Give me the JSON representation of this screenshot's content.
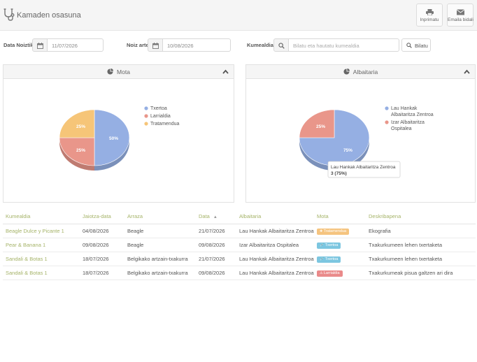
{
  "header": {
    "title": "Kamaden osasuna",
    "print_label": "Inprimatu",
    "email_label": "Emaila bidali"
  },
  "filters": {
    "date_from_label": "Data Noiztik",
    "date_from_value": "11/07/2026",
    "date_to_label": "Noiz arte",
    "date_to_value": "10/08/2026",
    "herd_label": "Kumealdia:",
    "herd_placeholder": "Bilatu eta hautatu kumealdia",
    "search_label": "Bilatu"
  },
  "panels": {
    "type_title": "Mota",
    "vet_title": "Albaitaria"
  },
  "chart_data": [
    {
      "type": "pie",
      "title": "Mota",
      "categories": [
        "Txertoa",
        "Larrialdia",
        "Tratamendua"
      ],
      "values": [
        50,
        25,
        25
      ],
      "labels": [
        "50%",
        "25%",
        "25%"
      ],
      "colors": [
        "#95afe3",
        "#e9968a",
        "#f6c578"
      ],
      "legend": "right"
    },
    {
      "type": "pie",
      "title": "Albaitaria",
      "categories": [
        "Lau Hankak Albaitaritza Zentroa",
        "Izar Albaitaritza Ospitalea"
      ],
      "values": [
        75,
        25
      ],
      "labels": [
        "75%",
        "25%"
      ],
      "colors": [
        "#95afe3",
        "#e9968a"
      ],
      "legend": "right",
      "tooltip": {
        "title": "Lau Hankak Albaitaritza Zentroa",
        "value": "3 (75%)"
      }
    }
  ],
  "table": {
    "headers": [
      "Kumealdia",
      "Jaiotza-data",
      "Arraza",
      "Data",
      "Albaitaria",
      "Mota",
      "Deskribapena"
    ],
    "rows": [
      {
        "herd": "Beagle Dulce y Picante 1",
        "birth": "04/08/2026",
        "breed": "Beagle",
        "date": "21/07/2026",
        "vet": "Lau Hankak Albaitaritza Zentroa",
        "type": "Tratamendua",
        "type_key": "tratamendua",
        "desc": "Ekografia"
      },
      {
        "herd": "Pear & Banana 1",
        "birth": "09/08/2026",
        "breed": "Beagle",
        "date": "09/08/2026",
        "vet": "Izar Albaitaritza Ospitalea",
        "type": "Txertoa",
        "type_key": "txertoa",
        "desc": "Txakurkumeen lehen txertaketa"
      },
      {
        "herd": "Sandali & Botas 1",
        "birth": "18/07/2026",
        "breed": "Belgikako artzain-txakurra",
        "date": "21/07/2026",
        "vet": "Lau Hankak Albaitaritza Zentroa",
        "type": "Txertoa",
        "type_key": "txertoa",
        "desc": "Txakurkumeen lehen txertaketa"
      },
      {
        "herd": "Sandali & Botas 1",
        "birth": "18/07/2026",
        "breed": "Belgikako artzain-txakurra",
        "date": "09/08/2026",
        "vet": "Lau Hankak Albaitaritza Zentroa",
        "type": "Larrialdia",
        "type_key": "lamaldia",
        "desc": "Txakurkumeak pisua galtzen ari dira"
      }
    ]
  }
}
